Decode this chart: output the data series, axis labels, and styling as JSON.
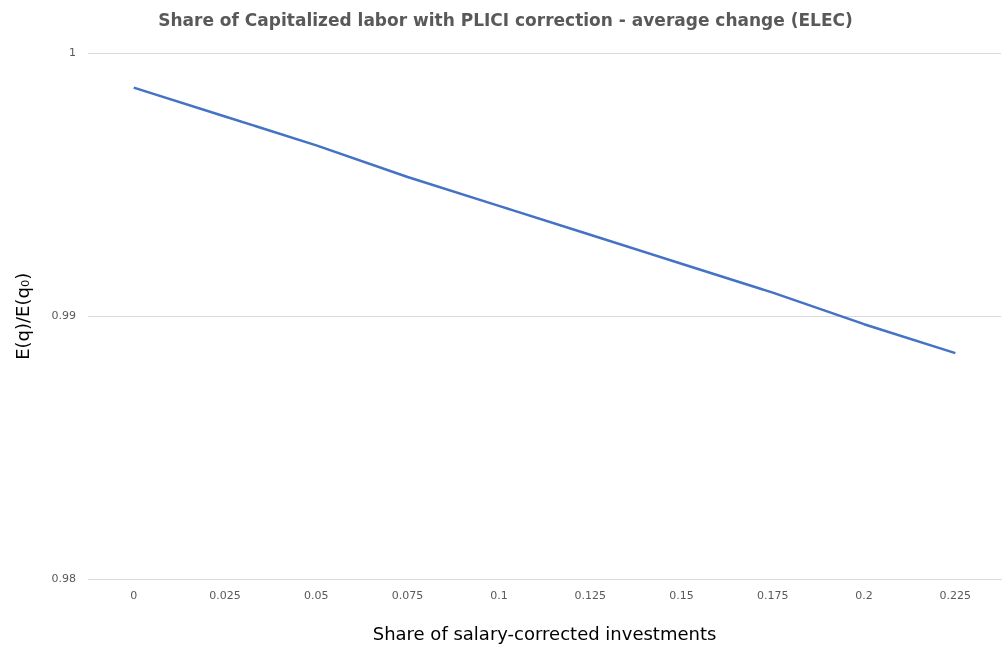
{
  "chart_data": {
    "type": "line",
    "title": "Share of Capitalized labor with PLICI correction - average change (ELEC)",
    "xlabel": "Share of salary-corrected investments",
    "ylabel": "E(q)/E(q₀)",
    "categories": [
      "0",
      "0.025",
      "0.05",
      "0.075",
      "0.1",
      "0.125",
      "0.15",
      "0.175",
      "0.2",
      "0.225"
    ],
    "series": [
      {
        "color": "#4472c4",
        "values": [
          0.9987,
          0.9976,
          0.9965,
          0.9953,
          0.9942,
          0.9931,
          0.992,
          0.9909,
          0.9897,
          0.9886
        ]
      }
    ],
    "ylim": [
      0.98,
      1
    ],
    "yticks": [
      0.98,
      0.99,
      1
    ],
    "grid": "y",
    "legend": false,
    "marker": "none",
    "line_style": "solid"
  }
}
